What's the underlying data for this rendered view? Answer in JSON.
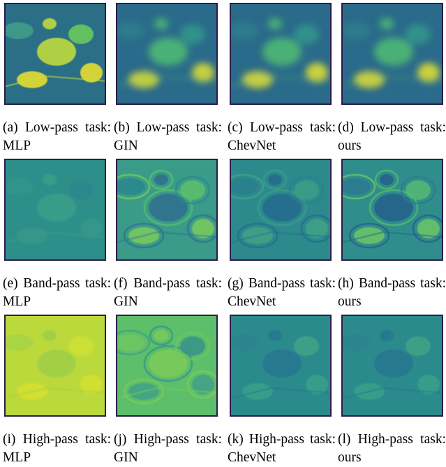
{
  "figure": {
    "panels": [
      {
        "caption": "(a) Low-pass task: MLP"
      },
      {
        "caption": "(b) Low-pass task: GIN"
      },
      {
        "caption": "(c) Low-pass task: ChevNet"
      },
      {
        "caption": "(d) Low-pass task: ours"
      },
      {
        "caption": "(e) Band-pass task: MLP"
      },
      {
        "caption": "(f) Band-pass task: GIN"
      },
      {
        "caption": "(g) Band-pass task: ChevNet"
      },
      {
        "caption": "(h) Band-pass task: ours"
      },
      {
        "caption": "(i) High-pass task: MLP"
      },
      {
        "caption": "(j) High-pass task: GIN"
      },
      {
        "caption": "(k) High-pass task: ChevNet"
      },
      {
        "caption": "(l) High-pass task: ours"
      }
    ]
  }
}
